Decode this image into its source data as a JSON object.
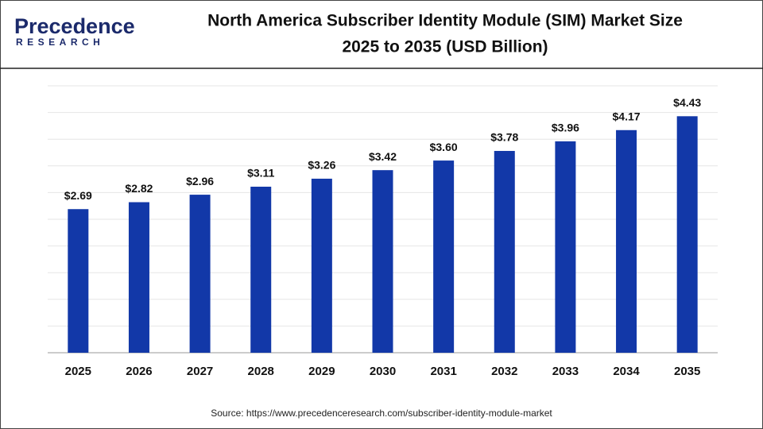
{
  "logo": {
    "name": "Precedence",
    "sub": "RESEARCH"
  },
  "chart_data": {
    "type": "bar",
    "title_lines": [
      "North America Subscriber Identity Module (SIM) Market Size",
      "2025 to 2035 (USD Billion)"
    ],
    "categories": [
      "2025",
      "2026",
      "2027",
      "2028",
      "2029",
      "2030",
      "2031",
      "2032",
      "2033",
      "2034",
      "2035"
    ],
    "values": [
      2.69,
      2.82,
      2.96,
      3.11,
      3.26,
      3.42,
      3.6,
      3.78,
      3.96,
      4.17,
      4.43
    ],
    "value_labels": [
      "$2.69",
      "$2.82",
      "$2.96",
      "$3.11",
      "$3.26",
      "$3.42",
      "$3.60",
      "$3.78",
      "$3.96",
      "$4.17",
      "$4.43"
    ],
    "color": "#1238a8",
    "ylim": [
      0,
      5
    ],
    "ygrid": [
      0.5,
      1,
      1.5,
      2,
      2.5,
      3,
      3.5,
      4,
      4.5,
      5
    ],
    "grid": true,
    "source": "Source: https://www.precedenceresearch.com/subscriber-identity-module-market"
  }
}
